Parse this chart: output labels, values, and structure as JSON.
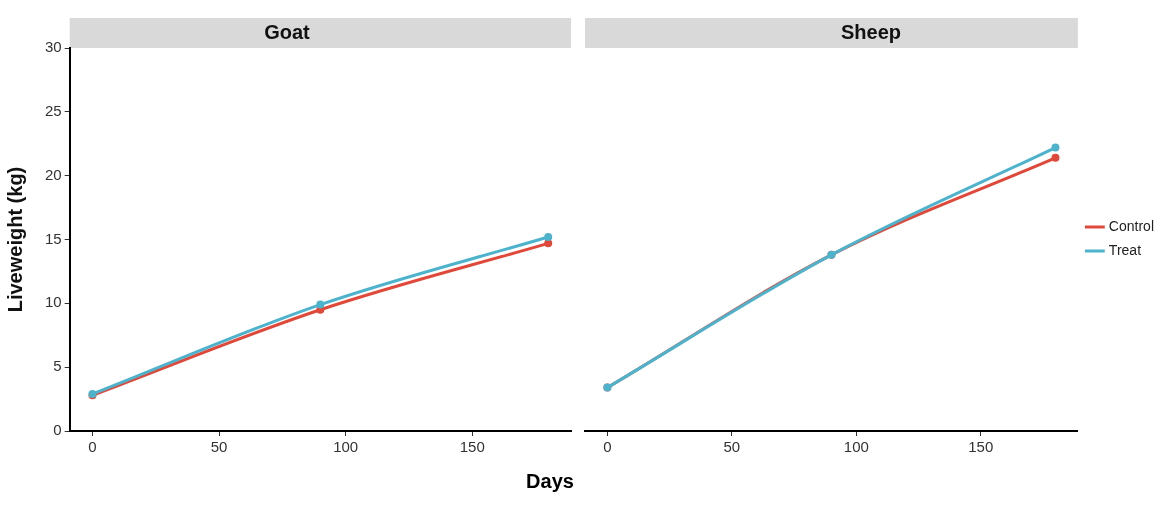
{
  "chart_data": [
    {
      "type": "line",
      "title": "Goat",
      "ylabel": "Liveweight (kg)",
      "xlabel": "Days",
      "x": [
        0,
        90,
        180
      ],
      "xlim": [
        -9,
        189
      ],
      "xticks": [
        0,
        50,
        100,
        150
      ],
      "ylim": [
        0,
        30
      ],
      "yticks": [
        0,
        5,
        10,
        15,
        20,
        25,
        30
      ],
      "grid": false,
      "legend": false,
      "marker": "circle",
      "line_style": "solid",
      "series": [
        {
          "color": "#e0493a",
          "values": [
            2.8,
            9.5,
            14.7
          ]
        },
        {
          "color": "#4db3cc",
          "values": [
            2.9,
            9.9,
            15.2
          ]
        }
      ]
    },
    {
      "type": "line",
      "title": "Sheep",
      "x": [
        0,
        90,
        180
      ],
      "xlim": [
        -9,
        189
      ],
      "xticks": [
        0,
        50,
        100,
        150
      ],
      "ylim": [
        0,
        30
      ],
      "yticks": [
        0,
        5,
        10,
        15,
        20,
        25,
        30
      ],
      "grid": false,
      "legend": "right",
      "tick_labels": "x",
      "marker": "circle",
      "line_style": "solid",
      "series": [
        {
          "name": "Control",
          "color": "#e0493a",
          "values": [
            3.4,
            13.8,
            21.4
          ]
        },
        {
          "name": "Treat",
          "color": "#4db3cc",
          "values": [
            3.4,
            13.8,
            22.2
          ]
        }
      ]
    }
  ]
}
